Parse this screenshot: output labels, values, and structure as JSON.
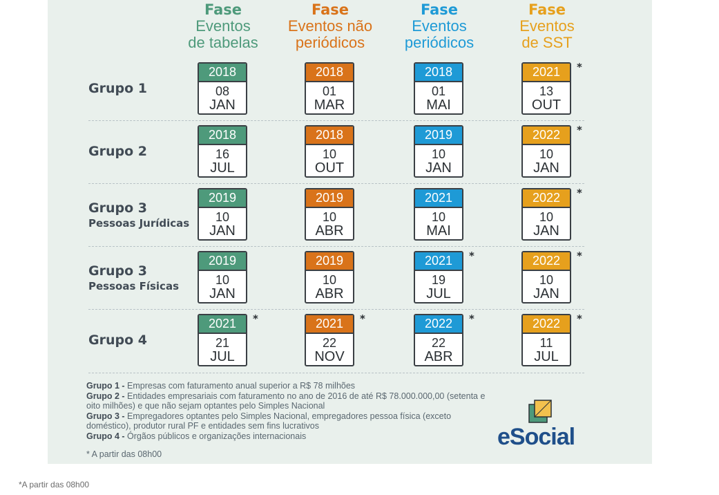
{
  "colors": {
    "tabelas": "#4e9a7b",
    "nao_periodicos": "#d9731a",
    "periodicos": "#1e9ad6",
    "sst": "#e6a01d"
  },
  "columns": [
    {
      "fase": "Fase",
      "line1": "Eventos",
      "line2": "de tabelas"
    },
    {
      "fase": "Fase",
      "line1": "Eventos não",
      "line2": "periódicos"
    },
    {
      "fase": "Fase",
      "line1": "Eventos",
      "line2": "periódicos"
    },
    {
      "fase": "Fase",
      "line1": "Eventos",
      "line2": "de SST"
    }
  ],
  "rows": [
    {
      "label": "Grupo 1",
      "sub": "",
      "cells": [
        {
          "year": "2018",
          "day": "08",
          "month": "JAN",
          "star": ""
        },
        {
          "year": "2018",
          "day": "01",
          "month": "MAR",
          "star": ""
        },
        {
          "year": "2018",
          "day": "01",
          "month": "MAI",
          "star": ""
        },
        {
          "year": "2021",
          "day": "13",
          "month": "OUT",
          "star": "*"
        }
      ]
    },
    {
      "label": "Grupo 2",
      "sub": "",
      "cells": [
        {
          "year": "2018",
          "day": "16",
          "month": "JUL",
          "star": ""
        },
        {
          "year": "2018",
          "day": "10",
          "month": "OUT",
          "star": ""
        },
        {
          "year": "2019",
          "day": "10",
          "month": "JAN",
          "star": ""
        },
        {
          "year": "2022",
          "day": "10",
          "month": "JAN",
          "star": "*"
        }
      ]
    },
    {
      "label": "Grupo 3",
      "sub": "Pessoas Jurídicas",
      "cells": [
        {
          "year": "2019",
          "day": "10",
          "month": "JAN",
          "star": ""
        },
        {
          "year": "2019",
          "day": "10",
          "month": "ABR",
          "star": ""
        },
        {
          "year": "2021",
          "day": "10",
          "month": "MAI",
          "star": ""
        },
        {
          "year": "2022",
          "day": "10",
          "month": "JAN",
          "star": "*"
        }
      ]
    },
    {
      "label": "Grupo 3",
      "sub": "Pessoas Físicas",
      "cells": [
        {
          "year": "2019",
          "day": "10",
          "month": "JAN",
          "star": ""
        },
        {
          "year": "2019",
          "day": "10",
          "month": "ABR",
          "star": ""
        },
        {
          "year": "2021",
          "day": "19",
          "month": "JUL",
          "star": "*"
        },
        {
          "year": "2022",
          "day": "10",
          "month": "JAN",
          "star": "*"
        }
      ]
    },
    {
      "label": "Grupo 4",
      "sub": "",
      "cells": [
        {
          "year": "2021",
          "day": "21",
          "month": "JUL",
          "star": "*"
        },
        {
          "year": "2021",
          "day": "22",
          "month": "NOV",
          "star": "*"
        },
        {
          "year": "2022",
          "day": "22",
          "month": "ABR",
          "star": "*"
        },
        {
          "year": "2022",
          "day": "11",
          "month": "JUL",
          "star": "*"
        }
      ]
    }
  ],
  "legend": [
    {
      "key": "Grupo 1 -",
      "text": " Empresas com faturamento anual superior a R$ 78 milhões"
    },
    {
      "key": "Grupo 2 -",
      "text": " Entidades empresariais com faturamento no ano de 2016 de até R$ 78.000.000,00 (setenta e oito milhões) e que não sejam optantes pelo Simples Nacional"
    },
    {
      "key": "Grupo 3 -",
      "text": " Empregadores optantes pelo Simples Nacional, empregadores pessoa física (exceto doméstico), produtor rural PF e entidades sem fins lucrativos"
    },
    {
      "key": "Grupo 4 -",
      "text": " Órgãos públicos e organizações internacionais"
    }
  ],
  "footnote_inside": "* A partir das 08h00",
  "footnote_outside": "*A partir das 08h00",
  "logo_text": "eSocial"
}
